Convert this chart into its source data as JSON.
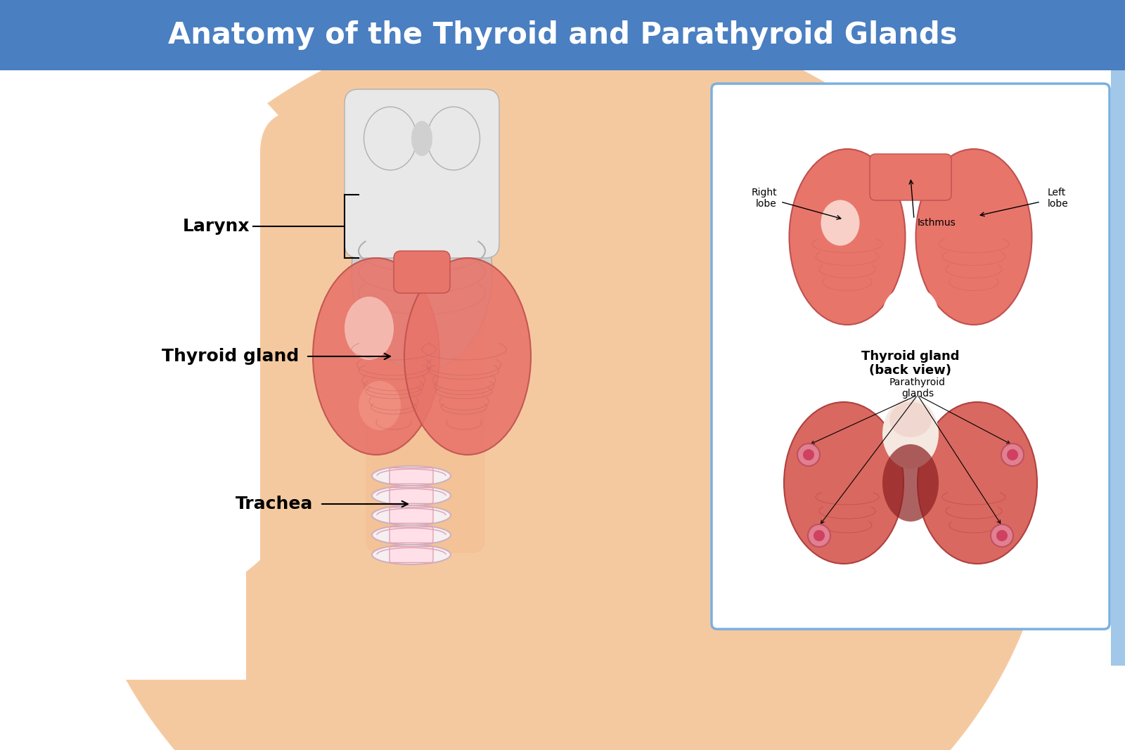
{
  "title": "Anatomy of the Thyroid and Parathyroid Glands",
  "title_bg": "#4a7fc1",
  "title_color": "#ffffff",
  "bg_color": "#ffffff",
  "skin_color": "#f5c9a0",
  "skin_shadow": "#f0b888",
  "thyroid_color": "#e8756a",
  "thyroid_light": "#f5a090",
  "thyroid_highlight": "#fad0c8",
  "larynx_color": "#d0d0d0",
  "larynx_light": "#e8e8e8",
  "trachea_color": "#f0e0e5",
  "trachea_stripe": "#e8c0cc",
  "label_larynx": "Larynx",
  "label_thyroid": "Thyroid gland",
  "label_trachea": "Trachea",
  "label_right_lobe": "Right\nlobe",
  "label_left_lobe": "Left\nlobe",
  "label_isthmus": "Isthmus",
  "label_thyroid_back": "Thyroid gland\n(back view)",
  "label_parathyroid": "Parathyroid\nglands",
  "box_color": "#7ab0e0",
  "box_bg": "#ffffff",
  "parathyroid_dot": "#c04060"
}
